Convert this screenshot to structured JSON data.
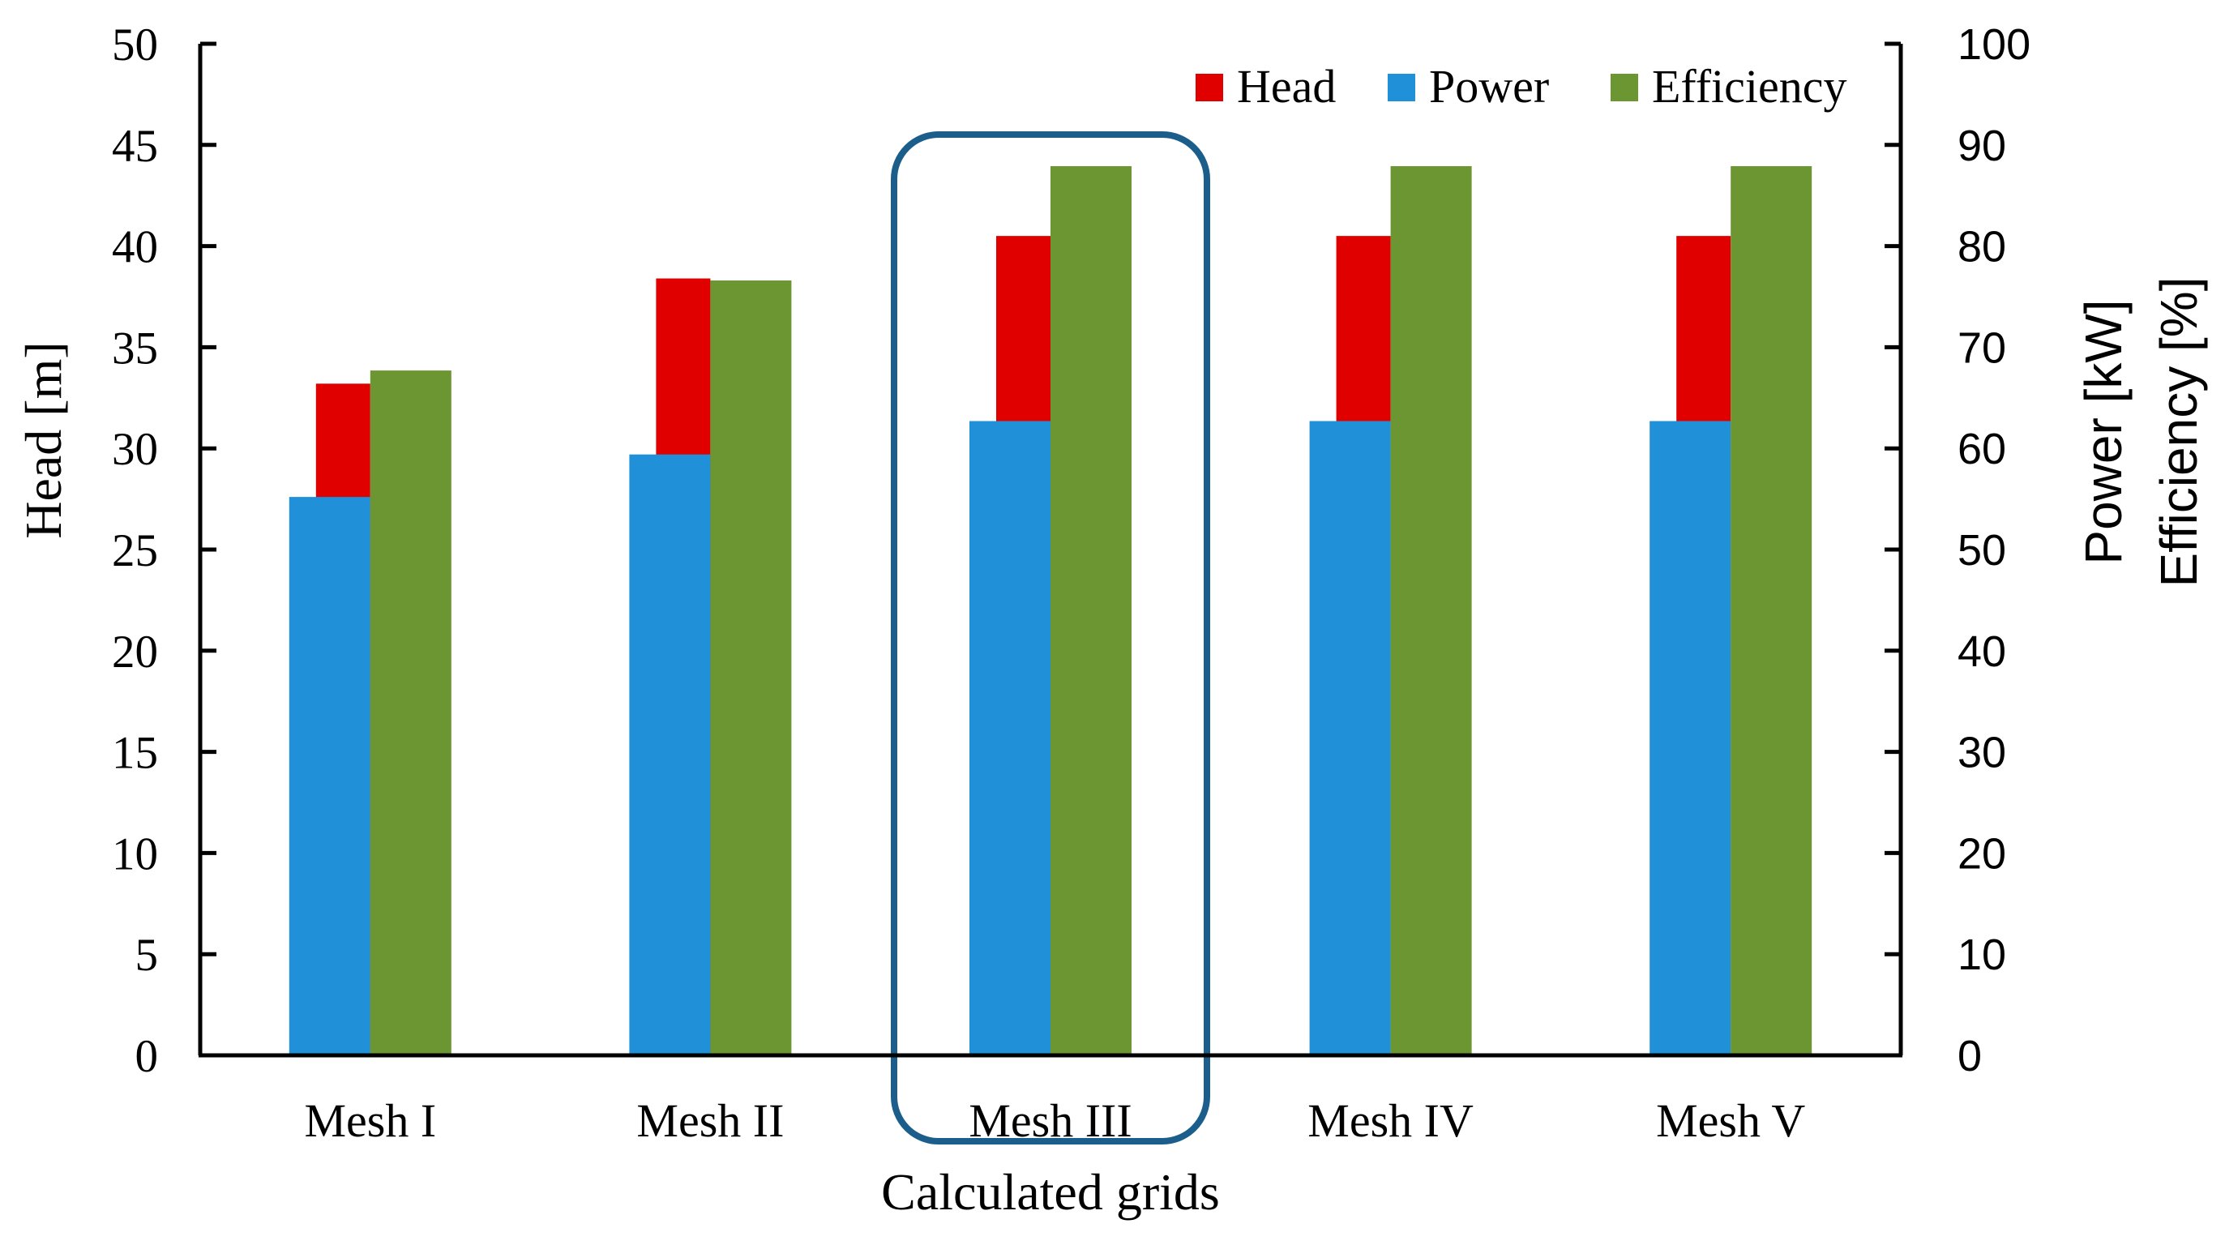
{
  "chart_data": {
    "type": "bar",
    "categories": [
      "Mesh I",
      "Mesh II",
      "Mesh III",
      "Mesh IV",
      "Mesh V"
    ],
    "series": [
      {
        "name": "Head",
        "axis": "left",
        "values": [
          33.2,
          38.4,
          40.5,
          40.5,
          40.5
        ]
      },
      {
        "name": "Power",
        "axis": "right",
        "values": [
          55.2,
          59.4,
          62.7,
          62.7,
          62.7
        ]
      },
      {
        "name": "Efficiency",
        "axis": "right",
        "values": [
          67.7,
          76.6,
          87.9,
          87.9,
          87.9
        ]
      }
    ],
    "left_axis": {
      "label": "Head [m]",
      "min": 0,
      "max": 50,
      "step": 5,
      "ticks": [
        "0",
        "5",
        "10",
        "15",
        "20",
        "25",
        "30",
        "35",
        "40",
        "45",
        "50"
      ]
    },
    "right_axis": {
      "label_line1": "Power [kW]",
      "label_line2": "Efficiency [%]",
      "min": 0,
      "max": 100,
      "step": 10,
      "ticks": [
        "0",
        "10",
        "20",
        "30",
        "40",
        "50",
        "60",
        "70",
        "80",
        "90",
        "100"
      ]
    },
    "xlabel": "Calculated  grids",
    "legend": {
      "placement": "top-right",
      "entries": [
        "Head",
        "Power",
        "Efficiency"
      ]
    },
    "highlight": {
      "category": "Mesh III"
    },
    "colors": {
      "Head": "#e00000",
      "Power": "#2090d8",
      "Efficiency": "#6b9632",
      "highlight": "#1b5e8c",
      "axis": "#000000"
    },
    "grid": false
  }
}
